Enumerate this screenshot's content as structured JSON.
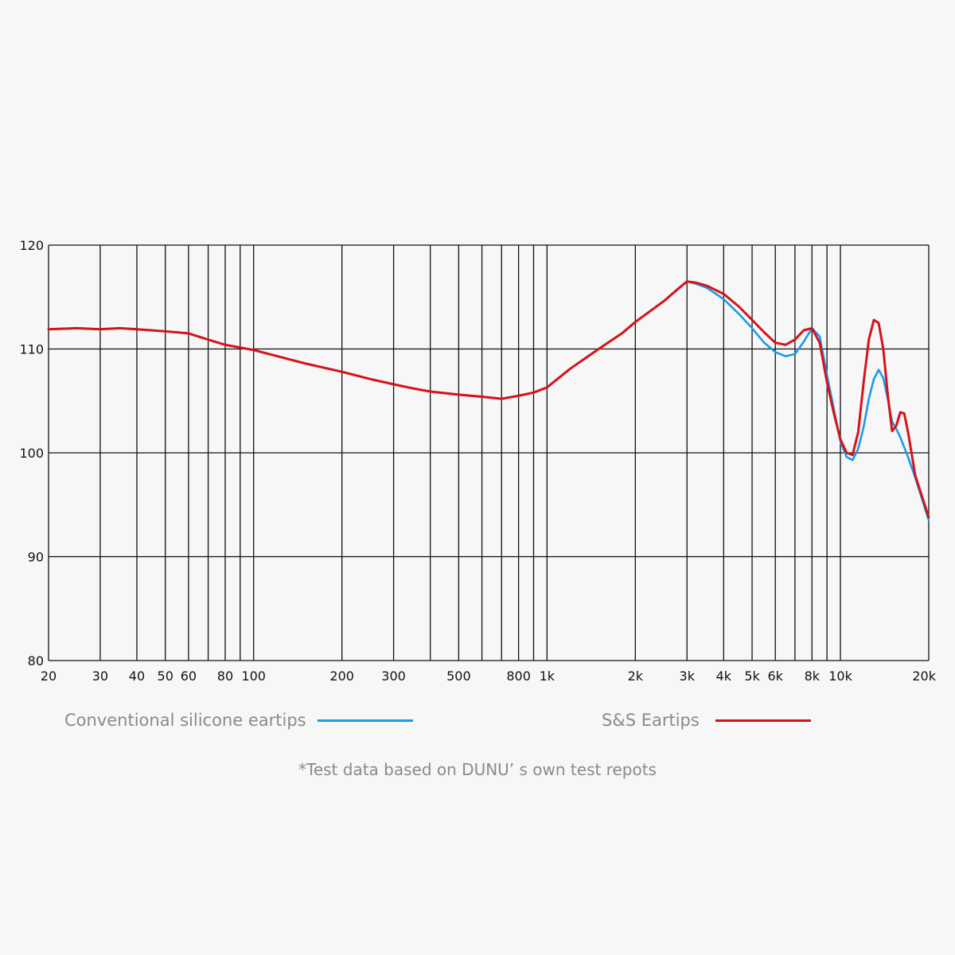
{
  "chart_data": {
    "type": "line",
    "xscale": "log",
    "xlim": [
      20,
      20000
    ],
    "ylim": [
      80,
      120
    ],
    "x_ticks": [
      {
        "value": 20,
        "label": "20"
      },
      {
        "value": 30,
        "label": "30"
      },
      {
        "value": 40,
        "label": "40"
      },
      {
        "value": 50,
        "label": "50"
      },
      {
        "value": 60,
        "label": "60"
      },
      {
        "value": 70,
        "label": ""
      },
      {
        "value": 80,
        "label": "80"
      },
      {
        "value": 90,
        "label": ""
      },
      {
        "value": 100,
        "label": "100"
      },
      {
        "value": 200,
        "label": "200"
      },
      {
        "value": 300,
        "label": "300"
      },
      {
        "value": 400,
        "label": ""
      },
      {
        "value": 500,
        "label": "500"
      },
      {
        "value": 600,
        "label": ""
      },
      {
        "value": 700,
        "label": ""
      },
      {
        "value": 800,
        "label": "800"
      },
      {
        "value": 900,
        "label": ""
      },
      {
        "value": 1000,
        "label": "1k"
      },
      {
        "value": 2000,
        "label": "2k"
      },
      {
        "value": 3000,
        "label": "3k"
      },
      {
        "value": 4000,
        "label": "4k"
      },
      {
        "value": 5000,
        "label": "5k"
      },
      {
        "value": 6000,
        "label": "6k"
      },
      {
        "value": 7000,
        "label": ""
      },
      {
        "value": 8000,
        "label": "8k"
      },
      {
        "value": 9000,
        "label": ""
      },
      {
        "value": 10000,
        "label": "10k"
      },
      {
        "value": 20000,
        "label": "20k"
      }
    ],
    "y_ticks": [
      {
        "value": 80,
        "label": "80"
      },
      {
        "value": 90,
        "label": "90"
      },
      {
        "value": 100,
        "label": "100"
      },
      {
        "value": 110,
        "label": "110"
      },
      {
        "value": 120,
        "label": "120"
      }
    ],
    "grid": true,
    "legend_position": "bottom",
    "series": [
      {
        "name": "Conventional silicone eartips",
        "color": "#1a9be6",
        "x": [
          20,
          25,
          30,
          35,
          40,
          50,
          60,
          70,
          80,
          100,
          150,
          200,
          250,
          300,
          350,
          400,
          500,
          600,
          700,
          800,
          900,
          1000,
          1200,
          1500,
          1800,
          2000,
          2500,
          2800,
          3000,
          3200,
          3500,
          4000,
          4500,
          5000,
          5500,
          6000,
          6500,
          7000,
          7500,
          8000,
          8500,
          9000,
          10000,
          10500,
          11000,
          11500,
          12000,
          12500,
          13000,
          13500,
          14000,
          14500,
          15000,
          15500,
          16000,
          17000,
          18000,
          20000
        ],
        "y": [
          111.9,
          112.0,
          111.9,
          112.0,
          111.9,
          111.7,
          111.5,
          110.9,
          110.4,
          109.9,
          108.6,
          107.8,
          107.1,
          106.6,
          106.2,
          105.9,
          105.6,
          105.4,
          105.2,
          105.5,
          105.8,
          106.3,
          108.1,
          110.0,
          111.5,
          112.6,
          114.6,
          115.8,
          116.5,
          116.3,
          115.9,
          114.8,
          113.4,
          112.0,
          110.6,
          109.7,
          109.3,
          109.5,
          110.7,
          112.0,
          111.2,
          107.5,
          101.1,
          99.6,
          99.3,
          100.4,
          102.5,
          105.2,
          107.1,
          108.0,
          107.2,
          105.2,
          103.0,
          102.3,
          101.5,
          99.6,
          97.6,
          93.5
        ]
      },
      {
        "name": "S&S Eartips",
        "color": "#d5131a",
        "x": [
          20,
          25,
          30,
          35,
          40,
          50,
          60,
          70,
          80,
          100,
          150,
          200,
          250,
          300,
          350,
          400,
          500,
          600,
          700,
          800,
          900,
          1000,
          1200,
          1500,
          1800,
          2000,
          2500,
          2800,
          3000,
          3200,
          3500,
          4000,
          4500,
          5000,
          5500,
          6000,
          6500,
          7000,
          7500,
          8000,
          8500,
          9000,
          9500,
          10000,
          10500,
          11000,
          11500,
          12000,
          12500,
          13000,
          13500,
          14000,
          14500,
          15000,
          15500,
          16000,
          16500,
          17000,
          18000,
          20000
        ],
        "y": [
          111.9,
          112.0,
          111.9,
          112.0,
          111.9,
          111.7,
          111.5,
          110.9,
          110.4,
          109.9,
          108.6,
          107.8,
          107.1,
          106.6,
          106.2,
          105.9,
          105.6,
          105.4,
          105.2,
          105.5,
          105.8,
          106.3,
          108.1,
          110.0,
          111.5,
          112.6,
          114.6,
          115.8,
          116.5,
          116.4,
          116.1,
          115.3,
          114.1,
          112.8,
          111.6,
          110.6,
          110.4,
          110.9,
          111.8,
          112.0,
          110.6,
          106.8,
          103.8,
          101.3,
          100.0,
          99.8,
          102.0,
          106.8,
          110.9,
          112.8,
          112.5,
          110.0,
          105.6,
          102.1,
          102.6,
          103.9,
          103.8,
          102.0,
          97.8,
          93.8
        ]
      }
    ]
  },
  "footnote": "*Test data based on DUNU’ s own test repots"
}
